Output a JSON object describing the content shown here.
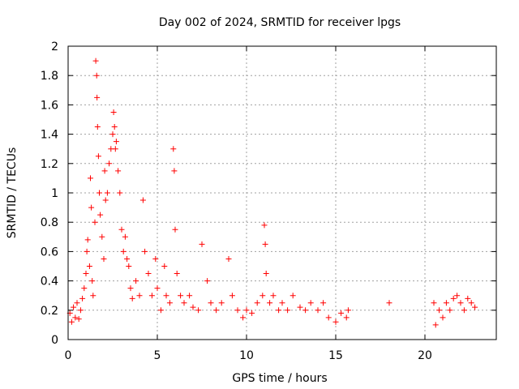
{
  "chart_data": {
    "type": "scatter",
    "title": "Day 002 of 2024, SRMTID for receiver lpgs",
    "xlabel": "GPS time / hours",
    "ylabel": "SRMTID / TECUs",
    "xlim": [
      0,
      24
    ],
    "ylim": [
      0,
      2
    ],
    "x_ticks": [
      0,
      5,
      10,
      15,
      20
    ],
    "x_tick_labels": [
      "0",
      "5",
      "10",
      "15",
      "20"
    ],
    "y_ticks": [
      0,
      0.2,
      0.4,
      0.6,
      0.8,
      1,
      1.2,
      1.4,
      1.6,
      1.8,
      2
    ],
    "y_tick_labels": [
      "0",
      "0.2",
      "0.4",
      "0.6",
      "0.8",
      "1",
      "1.2",
      "1.4",
      "1.6",
      "1.8",
      "2"
    ],
    "grid": true,
    "marker": "+",
    "marker_color": "#ff0000",
    "series": [
      {
        "name": "SRMTID",
        "points": [
          [
            0.1,
            0.18
          ],
          [
            0.2,
            0.12
          ],
          [
            0.3,
            0.22
          ],
          [
            0.4,
            0.15
          ],
          [
            0.5,
            0.25
          ],
          [
            0.6,
            0.14
          ],
          [
            0.7,
            0.2
          ],
          [
            0.8,
            0.28
          ],
          [
            0.9,
            0.35
          ],
          [
            1.0,
            0.45
          ],
          [
            1.05,
            0.6
          ],
          [
            1.1,
            0.68
          ],
          [
            1.2,
            0.5
          ],
          [
            1.25,
            1.1
          ],
          [
            1.3,
            0.9
          ],
          [
            1.35,
            0.4
          ],
          [
            1.4,
            0.3
          ],
          [
            1.5,
            0.8
          ],
          [
            1.55,
            1.9
          ],
          [
            1.6,
            1.8
          ],
          [
            1.62,
            1.65
          ],
          [
            1.65,
            1.45
          ],
          [
            1.7,
            1.25
          ],
          [
            1.75,
            1.0
          ],
          [
            1.8,
            0.85
          ],
          [
            1.9,
            0.7
          ],
          [
            2.0,
            0.55
          ],
          [
            2.05,
            1.15
          ],
          [
            2.1,
            0.95
          ],
          [
            2.2,
            1.0
          ],
          [
            2.3,
            1.2
          ],
          [
            2.4,
            1.3
          ],
          [
            2.5,
            1.4
          ],
          [
            2.55,
            1.55
          ],
          [
            2.6,
            1.45
          ],
          [
            2.65,
            1.3
          ],
          [
            2.7,
            1.35
          ],
          [
            2.8,
            1.15
          ],
          [
            2.9,
            1.0
          ],
          [
            3.0,
            0.75
          ],
          [
            3.1,
            0.6
          ],
          [
            3.2,
            0.7
          ],
          [
            3.3,
            0.55
          ],
          [
            3.4,
            0.5
          ],
          [
            3.5,
            0.35
          ],
          [
            3.6,
            0.28
          ],
          [
            3.8,
            0.4
          ],
          [
            4.0,
            0.3
          ],
          [
            4.2,
            0.95
          ],
          [
            4.3,
            0.6
          ],
          [
            4.5,
            0.45
          ],
          [
            4.7,
            0.3
          ],
          [
            4.9,
            0.55
          ],
          [
            5.0,
            0.35
          ],
          [
            5.2,
            0.2
          ],
          [
            5.4,
            0.5
          ],
          [
            5.5,
            0.3
          ],
          [
            5.7,
            0.25
          ],
          [
            5.9,
            1.3
          ],
          [
            5.95,
            1.15
          ],
          [
            6.0,
            0.75
          ],
          [
            6.1,
            0.45
          ],
          [
            6.3,
            0.3
          ],
          [
            6.5,
            0.25
          ],
          [
            6.8,
            0.3
          ],
          [
            7.0,
            0.22
          ],
          [
            7.3,
            0.2
          ],
          [
            7.5,
            0.65
          ],
          [
            7.8,
            0.4
          ],
          [
            8.0,
            0.25
          ],
          [
            8.3,
            0.2
          ],
          [
            8.6,
            0.25
          ],
          [
            9.0,
            0.55
          ],
          [
            9.2,
            0.3
          ],
          [
            9.5,
            0.2
          ],
          [
            9.8,
            0.15
          ],
          [
            10.0,
            0.2
          ],
          [
            10.3,
            0.18
          ],
          [
            10.6,
            0.25
          ],
          [
            10.9,
            0.3
          ],
          [
            11.0,
            0.78
          ],
          [
            11.05,
            0.65
          ],
          [
            11.1,
            0.45
          ],
          [
            11.3,
            0.25
          ],
          [
            11.5,
            0.3
          ],
          [
            11.8,
            0.2
          ],
          [
            12.0,
            0.25
          ],
          [
            12.3,
            0.2
          ],
          [
            12.6,
            0.3
          ],
          [
            13.0,
            0.22
          ],
          [
            13.3,
            0.2
          ],
          [
            13.6,
            0.25
          ],
          [
            14.0,
            0.2
          ],
          [
            14.3,
            0.25
          ],
          [
            14.6,
            0.15
          ],
          [
            15.0,
            0.12
          ],
          [
            15.3,
            0.18
          ],
          [
            15.6,
            0.15
          ],
          [
            15.7,
            0.2
          ],
          [
            18.0,
            0.25
          ],
          [
            20.5,
            0.25
          ],
          [
            20.6,
            0.1
          ],
          [
            20.8,
            0.2
          ],
          [
            21.0,
            0.15
          ],
          [
            21.2,
            0.25
          ],
          [
            21.4,
            0.2
          ],
          [
            21.6,
            0.28
          ],
          [
            21.8,
            0.3
          ],
          [
            22.0,
            0.25
          ],
          [
            22.2,
            0.2
          ],
          [
            22.4,
            0.28
          ],
          [
            22.6,
            0.25
          ],
          [
            22.8,
            0.22
          ]
        ]
      }
    ]
  }
}
